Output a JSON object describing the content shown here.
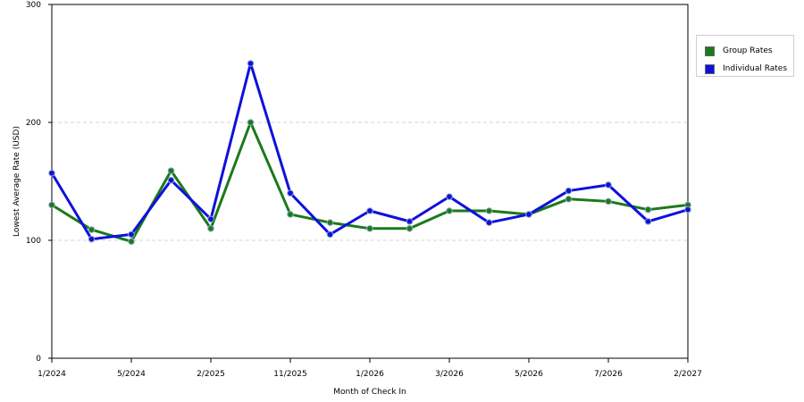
{
  "chart_data": {
    "type": "line",
    "xlabel": "Month of Check In",
    "ylabel": "Lowest Average Rate (USD)",
    "ylim": [
      0,
      300
    ],
    "yticks": [
      0,
      100,
      200,
      300
    ],
    "grid": "horizontal dashed",
    "legend_position": "top-right",
    "x_tick_labels": [
      "1/2024",
      "5/2024",
      "2/2025",
      "11/2025",
      "1/2026",
      "3/2026",
      "5/2026",
      "7/2026",
      "2/2027"
    ],
    "x_tick_indices": [
      0,
      2,
      4,
      6,
      8,
      10,
      12,
      14,
      16
    ],
    "point_count": 17,
    "series": [
      {
        "name": "Group Rates",
        "color": "#1a7a1a",
        "values": [
          130,
          109,
          99,
          159,
          110,
          200,
          122,
          115,
          110,
          110,
          125,
          125,
          122,
          135,
          133,
          126,
          130
        ]
      },
      {
        "name": "Individual Rates",
        "color": "#1010dd",
        "values": [
          157,
          101,
          105,
          151,
          118,
          250,
          140,
          105,
          125,
          116,
          137,
          115,
          122,
          142,
          147,
          116,
          126
        ]
      }
    ]
  }
}
